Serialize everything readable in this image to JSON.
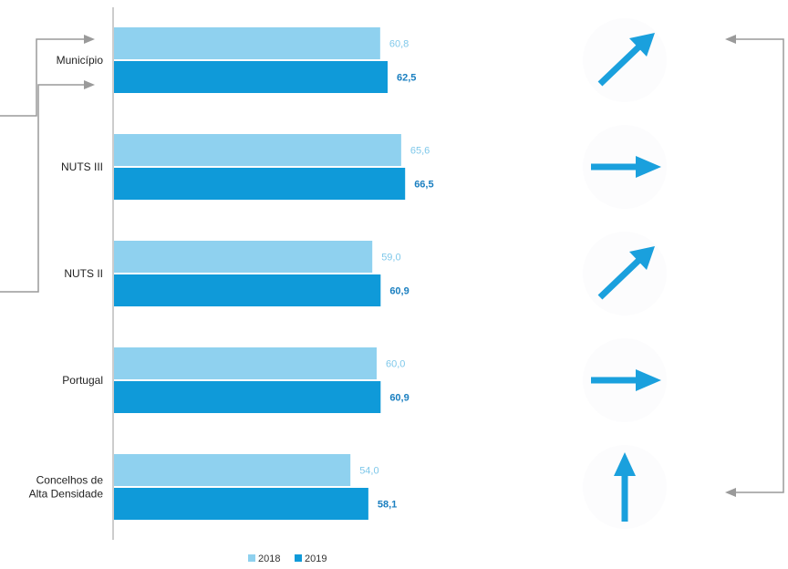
{
  "chart_data": {
    "type": "bar",
    "orientation": "horizontal",
    "categories": [
      "Município",
      "NUTS III",
      "NUTS II",
      "Portugal",
      "Concelhos de Alta Densidade"
    ],
    "category_lines": [
      [
        "Município"
      ],
      [
        "NUTS III"
      ],
      [
        "NUTS II"
      ],
      [
        "Portugal"
      ],
      [
        "Concelhos de",
        "Alta Densidade"
      ]
    ],
    "series": [
      {
        "name": "2018",
        "values": [
          60.8,
          65.6,
          59.0,
          60.0,
          54.0
        ],
        "labels": [
          "60,8",
          "65,6",
          "59,0",
          "60,0",
          "54,0"
        ],
        "color": "#8fd1ef"
      },
      {
        "name": "2019",
        "values": [
          62.5,
          66.5,
          60.9,
          60.9,
          58.1
        ],
        "labels": [
          "62,5",
          "66,5",
          "60,9",
          "60,9",
          "58,1"
        ],
        "color": "#0f9ad9"
      }
    ],
    "trend_icons": [
      "arrow-up-right-icon",
      "arrow-right-icon",
      "arrow-up-right-icon",
      "arrow-right-icon",
      "arrow-up-icon"
    ],
    "legend_position": "bottom",
    "grid": false,
    "title": "",
    "xlabel": "",
    "ylabel": ""
  },
  "colors": {
    "bar_2018": "#8fd1ef",
    "bar_2019": "#0f9ad9",
    "arrow": "#1aa0dd",
    "connector": "#9a9a9a",
    "axis": "#cccccc"
  }
}
